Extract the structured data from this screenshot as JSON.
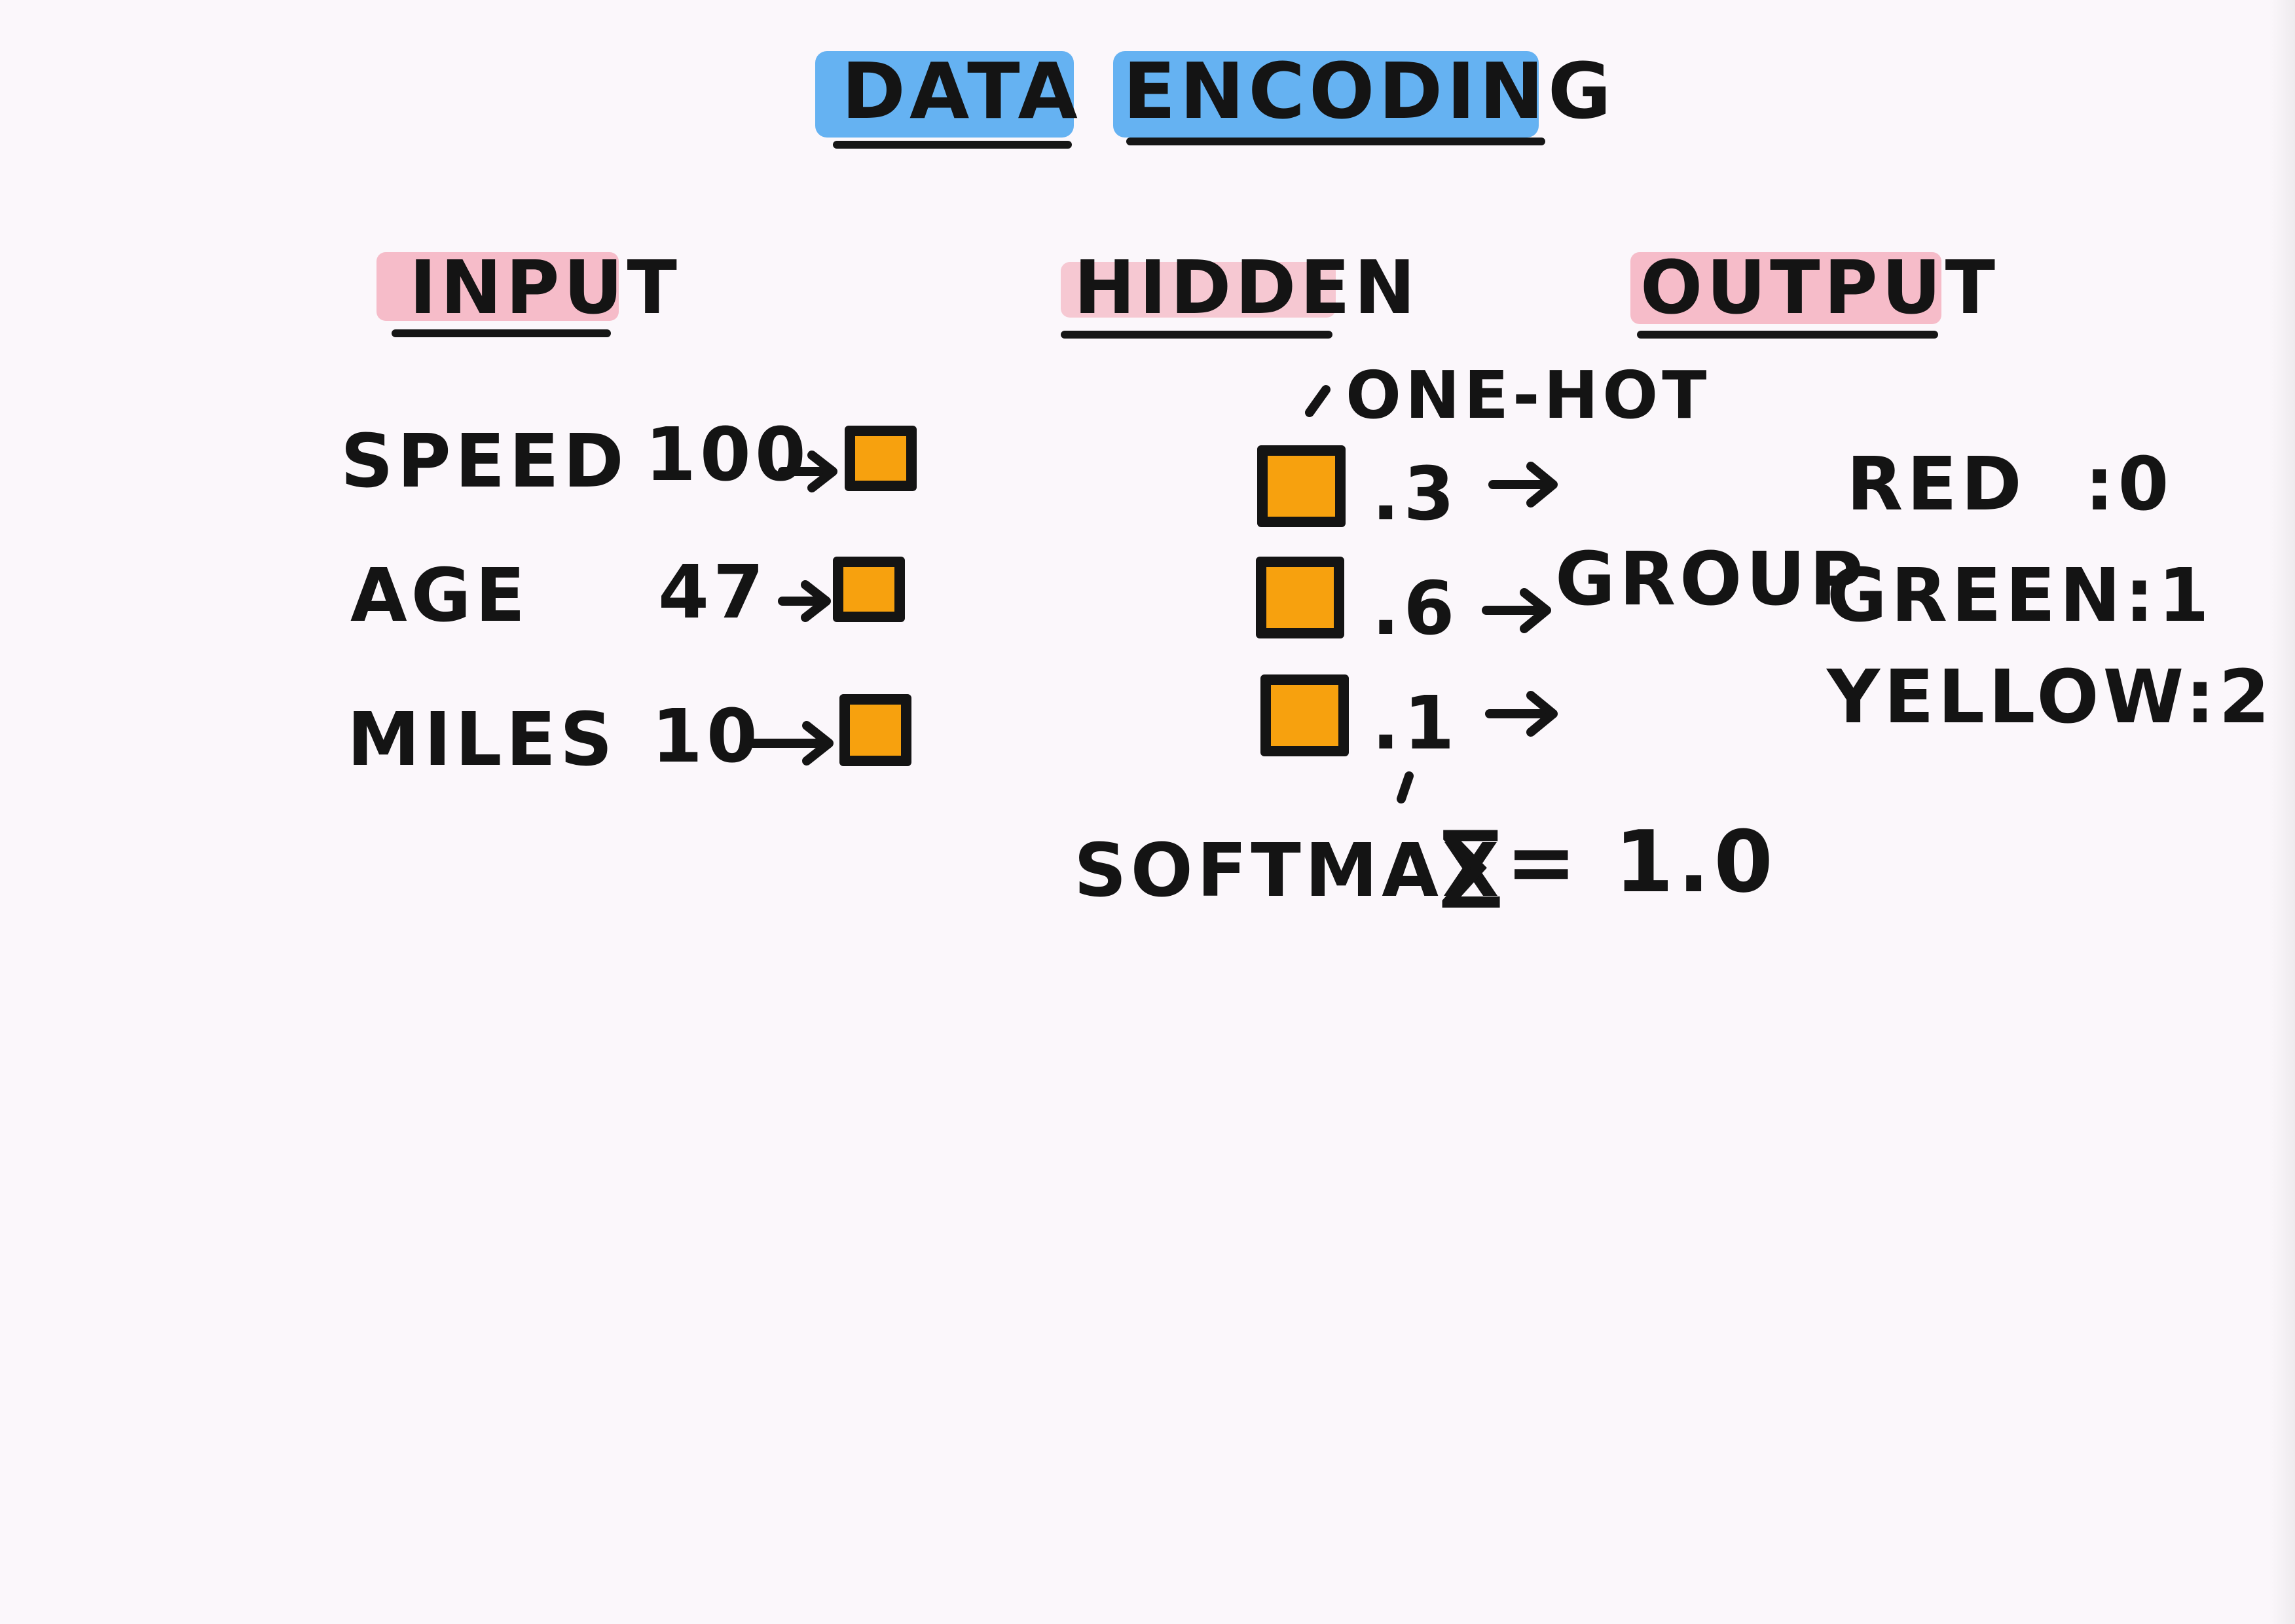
{
  "title": {
    "word1": "DATA",
    "word2": "ENCODING"
  },
  "sections": {
    "input": "INPUT",
    "hidden": "HIDDEN",
    "output": "OUTPUT"
  },
  "inputs": [
    {
      "label": "SPEED",
      "value": "100"
    },
    {
      "label": "AGE",
      "value": "47"
    },
    {
      "label": "MILES",
      "value": "10"
    }
  ],
  "hidden": {
    "annotation": "ONE-HOT",
    "values": [
      ".3",
      ".6",
      ".1"
    ],
    "group_label": "GROUP",
    "softmax_label": "SOFTMAX",
    "sum_text": "∑= 1.0"
  },
  "outputs": [
    {
      "text": "RED  :0"
    },
    {
      "text": "GREEN:1"
    },
    {
      "text": "YELLOW:2"
    }
  ],
  "colors": {
    "title_highlight": "#4aa6f0",
    "section_highlight": "#f4a8b8",
    "box_fill": "#f7a10e",
    "ink": "#141414"
  }
}
